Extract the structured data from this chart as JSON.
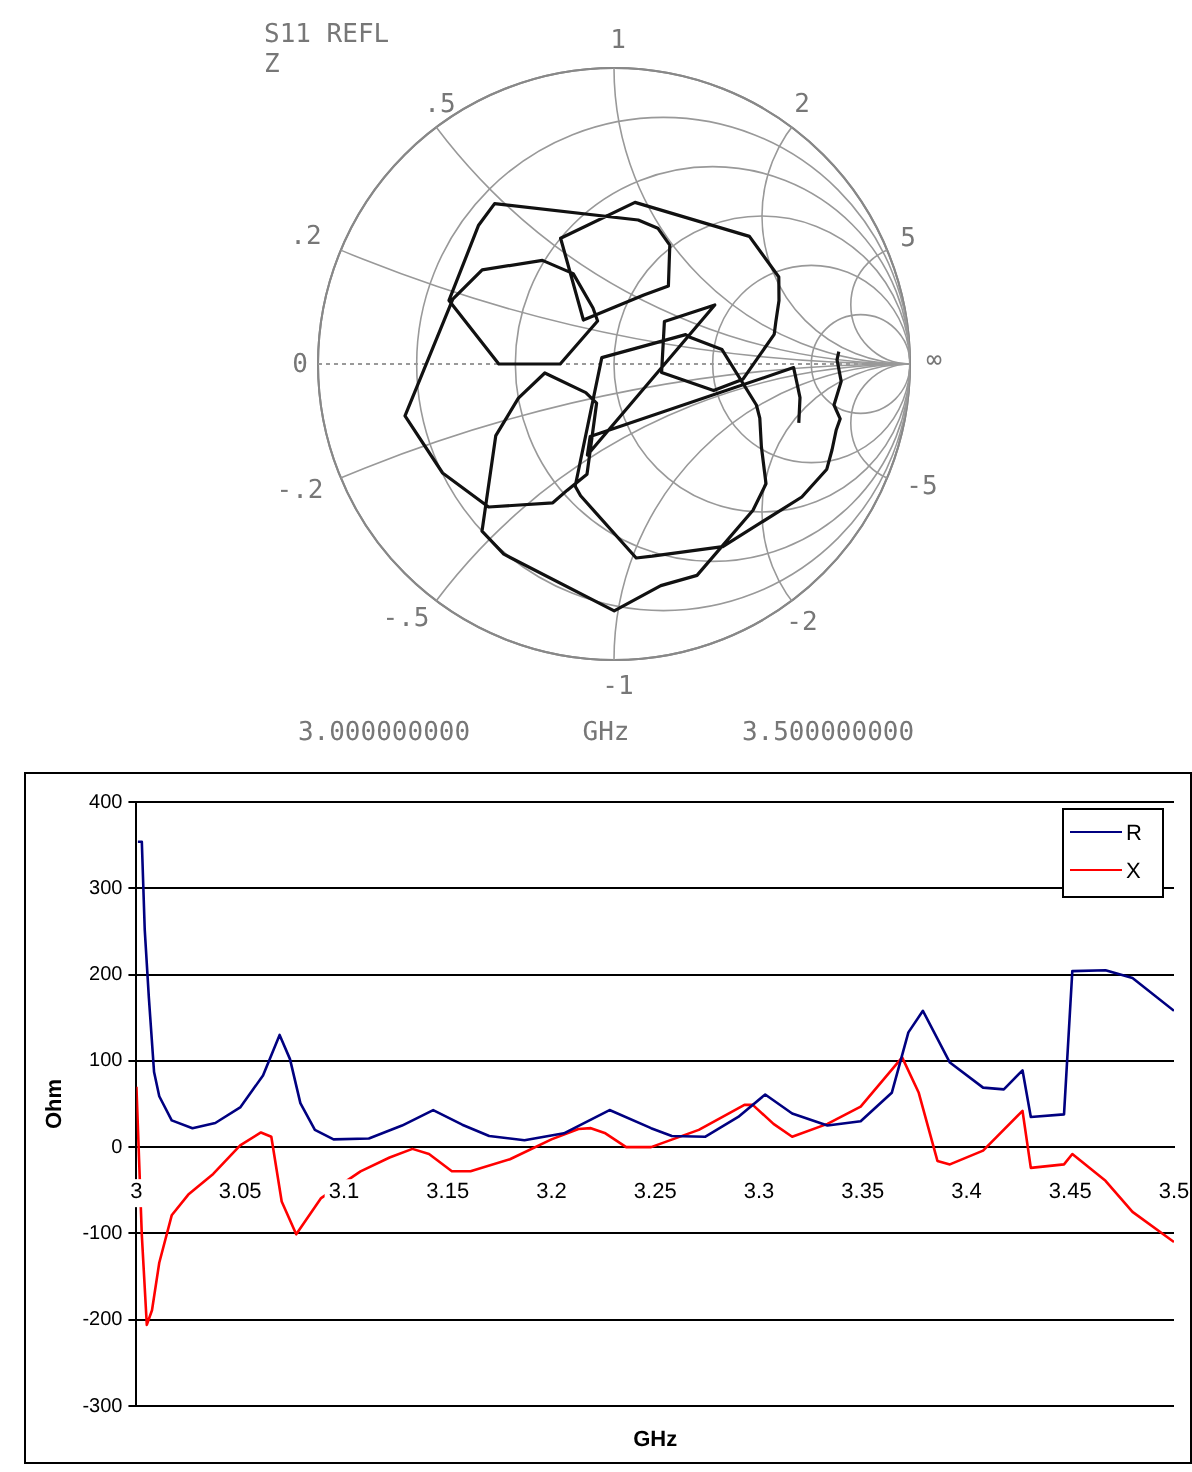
{
  "chart_data": [
    {
      "type": "other",
      "title": "S11 REFL",
      "subtitle": "Z",
      "annotations": [
        "1",
        ".5",
        "2",
        ".2",
        "5",
        "0",
        "∞",
        "-.2",
        "-5",
        "-.5",
        "-2",
        "-1",
        "3.000000000",
        "GHz",
        "3.500000000"
      ]
    },
    {
      "type": "line",
      "xlabel": "GHz",
      "ylabel": "Ohm",
      "xlim": [
        3,
        3.5
      ],
      "xticks": [
        3,
        3.05,
        3.1,
        3.15,
        3.2,
        3.25,
        3.3,
        3.35,
        3.4,
        3.45,
        3.5
      ],
      "ylim": [
        -300,
        400
      ],
      "yticks": [
        -300,
        -200,
        -100,
        0,
        100,
        200,
        300,
        400
      ],
      "grid": "y",
      "legend": "top right",
      "marker": "none",
      "series": [
        {
          "name": "R",
          "color": "#000080",
          "x": [
            3.0007,
            3.0026,
            3.004,
            3.006,
            3.0085,
            3.011,
            3.017,
            3.027,
            3.038,
            3.05,
            3.061,
            3.069,
            3.074,
            3.079,
            3.086,
            3.095,
            3.112,
            3.128,
            3.143,
            3.157,
            3.17,
            3.187,
            3.206,
            3.228,
            3.248,
            3.258,
            3.274,
            3.29,
            3.303,
            3.316,
            3.333,
            3.349,
            3.364,
            3.372,
            3.379,
            3.392,
            3.408,
            3.418,
            3.427,
            3.431,
            3.447,
            3.451,
            3.467,
            3.48,
            3.5
          ],
          "values": [
            354,
            354,
            252,
            173,
            87,
            59,
            31,
            22,
            28,
            46,
            83,
            130,
            102,
            51,
            20,
            9,
            10,
            25,
            43,
            26,
            13,
            8,
            16,
            43,
            22,
            13,
            12,
            35,
            61,
            39,
            25,
            30,
            63,
            133,
            158,
            98,
            69,
            67,
            89,
            35,
            38,
            204,
            205,
            196,
            158
          ]
        },
        {
          "name": "X",
          "color": "#ff0000",
          "x": [
            3,
            3.0026,
            3.005,
            3.0075,
            3.011,
            3.017,
            3.025,
            3.037,
            3.05,
            3.06,
            3.065,
            3.07,
            3.077,
            3.089,
            3.108,
            3.122,
            3.133,
            3.141,
            3.152,
            3.161,
            3.18,
            3.2,
            3.213,
            3.219,
            3.226,
            3.236,
            3.248,
            3.271,
            3.293,
            3.297,
            3.307,
            3.316,
            3.333,
            3.349,
            3.369,
            3.377,
            3.386,
            3.392,
            3.408,
            3.427,
            3.431,
            3.447,
            3.451,
            3.467,
            3.48,
            3.5
          ],
          "values": [
            70,
            -102,
            -206,
            -189,
            -134,
            -79,
            -55,
            -31,
            2,
            17,
            12,
            -63,
            -101,
            -59,
            -28,
            -12,
            -2,
            -8,
            -28,
            -28,
            -14,
            9,
            21,
            22,
            16,
            0,
            0,
            20,
            49,
            49,
            27,
            12,
            27,
            47,
            104,
            63,
            -16,
            -20,
            -4,
            42,
            -24,
            -20,
            -8,
            -39,
            -75,
            -110
          ]
        }
      ]
    }
  ]
}
